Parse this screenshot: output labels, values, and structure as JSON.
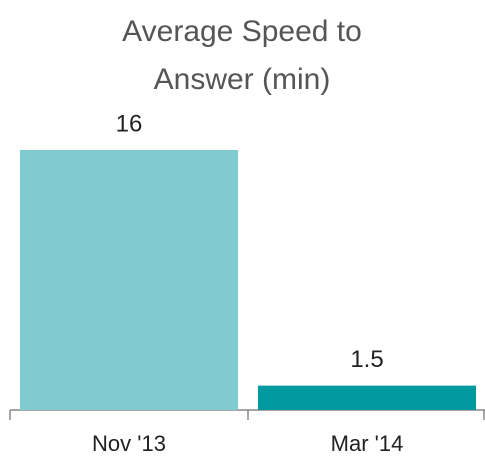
{
  "chart_data": {
    "type": "bar",
    "title": "Average Speed to Answer (min)",
    "categories": [
      "Nov '13",
      "Mar '14"
    ],
    "values": [
      16,
      1.5
    ],
    "colors": [
      "#80cbd0",
      "#00999f"
    ]
  }
}
